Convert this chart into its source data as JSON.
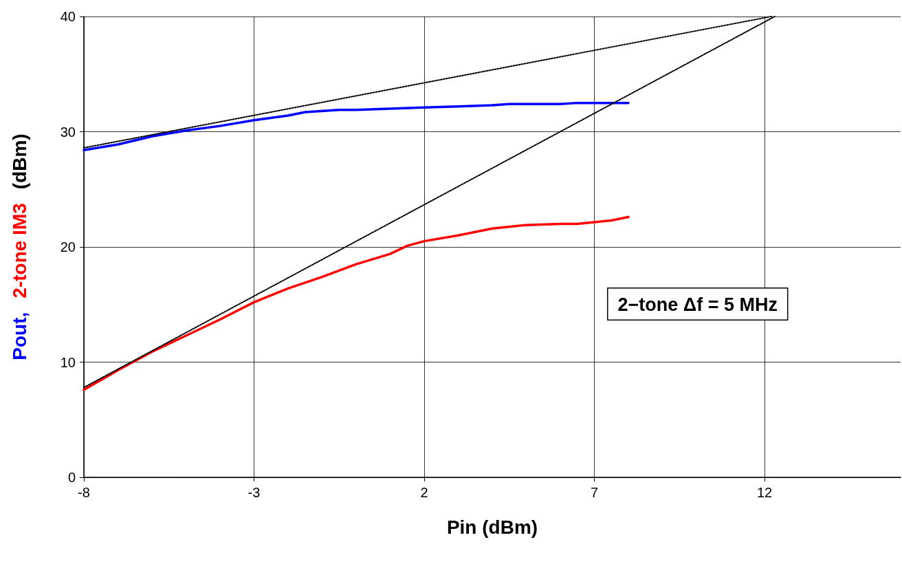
{
  "chart_data": {
    "type": "line",
    "xlabel": "Pin (dBm)",
    "ylabel": "(dBm)",
    "xlim": [
      -8,
      16
    ],
    "xticks": [
      -8,
      -3,
      2,
      7,
      12
    ],
    "ylim": [
      0,
      40
    ],
    "yticks": [
      0,
      10,
      20,
      30,
      40
    ],
    "grid": true,
    "marker": "none",
    "line_style": "solid",
    "annotations": [
      "2−tone Δf = 5 MHz"
    ],
    "series": [
      {
        "name": "Pout,",
        "color": "#0000ff",
        "x": [
          -8,
          -7,
          -6,
          -5,
          -4,
          -3,
          -2,
          -1.5,
          -0.5,
          0,
          1,
          2,
          3,
          4,
          4.5,
          5,
          6,
          6.5,
          7,
          8
        ],
        "values": [
          28.4,
          28.9,
          29.6,
          30.1,
          30.5,
          31.0,
          31.4,
          31.7,
          31.9,
          31.9,
          32.0,
          32.1,
          32.2,
          32.3,
          32.4,
          32.4,
          32.4,
          32.5,
          32.5,
          32.5
        ]
      },
      {
        "name": "2-tone IM3",
        "color": "#ff0000",
        "x": [
          -8,
          -7,
          -6,
          -5,
          -4,
          -3,
          -2,
          -1,
          0,
          1,
          1.5,
          2,
          3,
          4,
          5,
          6,
          6.5,
          7.5,
          8
        ],
        "values": [
          7.6,
          9.3,
          10.9,
          12.3,
          13.7,
          15.2,
          16.4,
          17.4,
          18.5,
          19.4,
          20.1,
          20.5,
          21.0,
          21.6,
          21.9,
          22.0,
          22.0,
          22.3,
          22.6
        ]
      },
      {
        "color": "#000000",
        "line_style": "dotted",
        "x": [
          -8,
          12.2
        ],
        "values": [
          28.6,
          40
        ]
      },
      {
        "color": "#000000",
        "line_style": "dotted",
        "x": [
          -8,
          12.3
        ],
        "values": [
          7.8,
          40
        ]
      }
    ]
  }
}
